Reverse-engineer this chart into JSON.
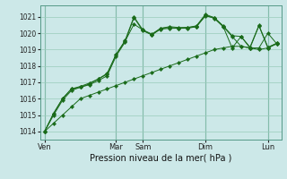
{
  "background_color": "#cce8e8",
  "grid_color": "#99ccbb",
  "line_color": "#1a6b1a",
  "title": "Pression niveau de la mer( hPa )",
  "yticks": [
    1014,
    1015,
    1016,
    1017,
    1018,
    1019,
    1020,
    1021
  ],
  "ylim": [
    1013.5,
    1021.7
  ],
  "xtick_labels": [
    "Ven",
    "Mar",
    "Sam",
    "Dim",
    "Lun"
  ],
  "xtick_positions": [
    0,
    8,
    11,
    18,
    25
  ],
  "n_points": 27,
  "series": [
    [
      1014.0,
      1014.5,
      1015.0,
      1015.5,
      1016.0,
      1016.2,
      1016.4,
      1016.6,
      1016.8,
      1017.0,
      1017.2,
      1017.4,
      1017.6,
      1017.8,
      1018.0,
      1018.2,
      1018.4,
      1018.6,
      1018.8,
      1019.0,
      1019.1,
      1019.2,
      1019.2,
      1019.1,
      1019.0,
      1019.1,
      1019.4
    ],
    [
      1014.0,
      1015.1,
      1016.0,
      1016.6,
      1016.7,
      1016.9,
      1017.2,
      1017.5,
      1018.7,
      1019.5,
      1020.55,
      1020.2,
      1019.9,
      1020.3,
      1020.35,
      1020.3,
      1020.3,
      1020.4,
      1021.05,
      1020.95,
      1020.4,
      1019.8,
      1019.2,
      1019.1,
      1019.1,
      1020.0,
      1019.35
    ],
    [
      1014.0,
      1015.0,
      1015.9,
      1016.5,
      1016.7,
      1016.85,
      1017.1,
      1017.4,
      1018.6,
      1019.45,
      1020.95,
      1020.15,
      1019.9,
      1020.25,
      1020.3,
      1020.3,
      1020.35,
      1020.4,
      1021.1,
      1020.9,
      1020.4,
      1019.1,
      1019.8,
      1019.1,
      1020.45,
      1019.1,
      1019.35
    ],
    [
      1014.0,
      1015.1,
      1016.0,
      1016.6,
      1016.75,
      1016.95,
      1017.2,
      1017.55,
      1018.7,
      1019.55,
      1021.0,
      1020.2,
      1019.95,
      1020.3,
      1020.4,
      1020.35,
      1020.35,
      1020.45,
      1021.15,
      1020.95,
      1020.45,
      1019.85,
      1019.8,
      1019.15,
      1020.48,
      1019.15,
      1019.38
    ]
  ]
}
